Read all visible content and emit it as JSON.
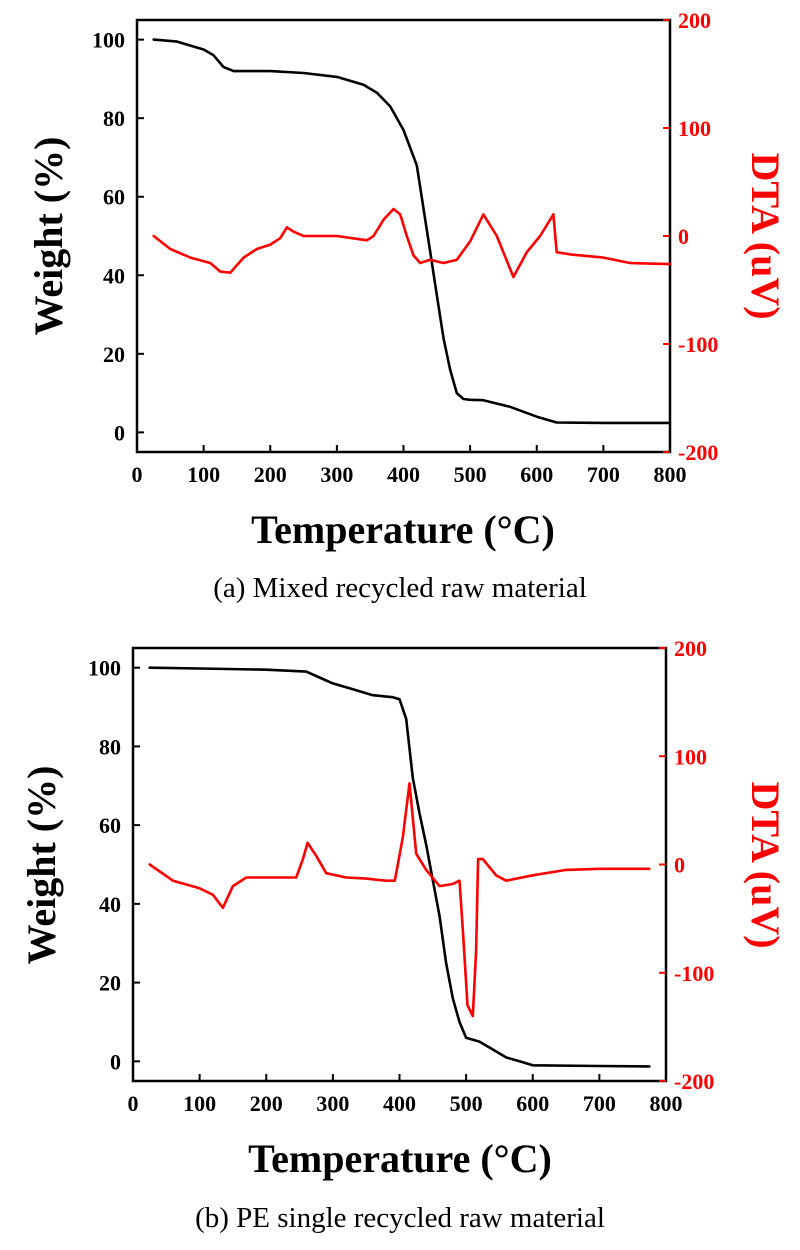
{
  "chart_data": [
    {
      "type": "line",
      "panel": "a",
      "caption": "(a) Mixed recycled raw material",
      "xlabel": "Temperature (°C)",
      "ylabel": "Weight (%)",
      "y2label": "DTA (uV)",
      "xlim": [
        0,
        800
      ],
      "ylim": [
        -5,
        105
      ],
      "y2lim": [
        -200,
        200
      ],
      "x_ticks": [
        0,
        100,
        200,
        300,
        400,
        500,
        600,
        700,
        800
      ],
      "y_ticks": [
        0,
        20,
        40,
        60,
        80,
        100
      ],
      "y2_ticks": [
        -200,
        -100,
        0,
        100,
        200
      ],
      "colors": {
        "weight": "#000000",
        "dta": "#ff0000"
      },
      "series": [
        {
          "name": "Weight",
          "axis": "left",
          "color": "#000000",
          "x": [
            25,
            60,
            100,
            115,
            130,
            145,
            200,
            250,
            300,
            340,
            360,
            380,
            400,
            420,
            430,
            440,
            450,
            460,
            470,
            480,
            490,
            500,
            520,
            560,
            600,
            630,
            700,
            800
          ],
          "y": [
            100,
            99.5,
            97.5,
            96,
            93,
            92,
            92,
            91.5,
            90.5,
            88.5,
            86.5,
            83,
            77,
            68,
            57,
            46,
            35,
            24,
            16,
            10,
            8.5,
            8.3,
            8.2,
            6.5,
            4,
            2.5,
            2.4,
            2.4
          ]
        },
        {
          "name": "DTA",
          "axis": "right",
          "color": "#ff0000",
          "x": [
            25,
            50,
            80,
            110,
            125,
            140,
            160,
            180,
            200,
            215,
            225,
            235,
            250,
            300,
            345,
            355,
            370,
            385,
            395,
            405,
            415,
            425,
            440,
            460,
            480,
            500,
            520,
            540,
            565,
            585,
            605,
            625,
            630,
            650,
            700,
            740,
            800
          ],
          "y": [
            0,
            -12,
            -20,
            -25,
            -33,
            -34,
            -20,
            -12,
            -8,
            -2,
            8,
            4,
            0,
            0,
            -4,
            0,
            15,
            25,
            20,
            0,
            -18,
            -25,
            -22,
            -25,
            -22,
            -5,
            20,
            0,
            -38,
            -15,
            0,
            20,
            -15,
            -17,
            -20,
            -25,
            -26
          ]
        }
      ]
    },
    {
      "type": "line",
      "panel": "b",
      "caption": "(b) PE single recycled raw material",
      "xlabel": "Temperature (°C)",
      "ylabel": "Weight (%)",
      "y2label": "DTA (uV)",
      "xlim": [
        0,
        800
      ],
      "ylim": [
        -5,
        105
      ],
      "y2lim": [
        -200,
        200
      ],
      "x_ticks": [
        0,
        100,
        200,
        300,
        400,
        500,
        600,
        700,
        800
      ],
      "y_ticks": [
        0,
        20,
        40,
        60,
        80,
        100
      ],
      "y2_ticks": [
        -200,
        -100,
        0,
        100,
        200
      ],
      "colors": {
        "weight": "#000000",
        "dta": "#ff0000"
      },
      "series": [
        {
          "name": "Weight",
          "axis": "left",
          "color": "#000000",
          "x": [
            25,
            100,
            200,
            260,
            280,
            300,
            330,
            360,
            390,
            400,
            410,
            420,
            430,
            440,
            450,
            460,
            470,
            480,
            490,
            500,
            520,
            540,
            560,
            580,
            600,
            700,
            775
          ],
          "y": [
            100,
            99.8,
            99.5,
            99,
            97.5,
            96,
            94.5,
            93,
            92.5,
            92,
            87,
            72,
            63,
            55,
            46,
            37,
            25,
            16,
            10,
            6,
            5,
            3,
            1,
            0,
            -1,
            -1.2,
            -1.3
          ]
        },
        {
          "name": "DTA",
          "axis": "right",
          "color": "#ff0000",
          "x": [
            25,
            60,
            100,
            120,
            135,
            150,
            170,
            200,
            245,
            255,
            262,
            275,
            290,
            320,
            350,
            380,
            393,
            405,
            415,
            425,
            440,
            460,
            480,
            490,
            495,
            502,
            510,
            515,
            518,
            525,
            545,
            560,
            600,
            650,
            700,
            775
          ],
          "y": [
            0,
            -15,
            -22,
            -28,
            -40,
            -20,
            -12,
            -12,
            -12,
            5,
            20,
            8,
            -8,
            -12,
            -13,
            -15,
            -15,
            25,
            75,
            10,
            -5,
            -20,
            -18,
            -15,
            -60,
            -130,
            -140,
            -80,
            5,
            5,
            -10,
            -15,
            -10,
            -5,
            -4,
            -4
          ]
        }
      ]
    }
  ]
}
